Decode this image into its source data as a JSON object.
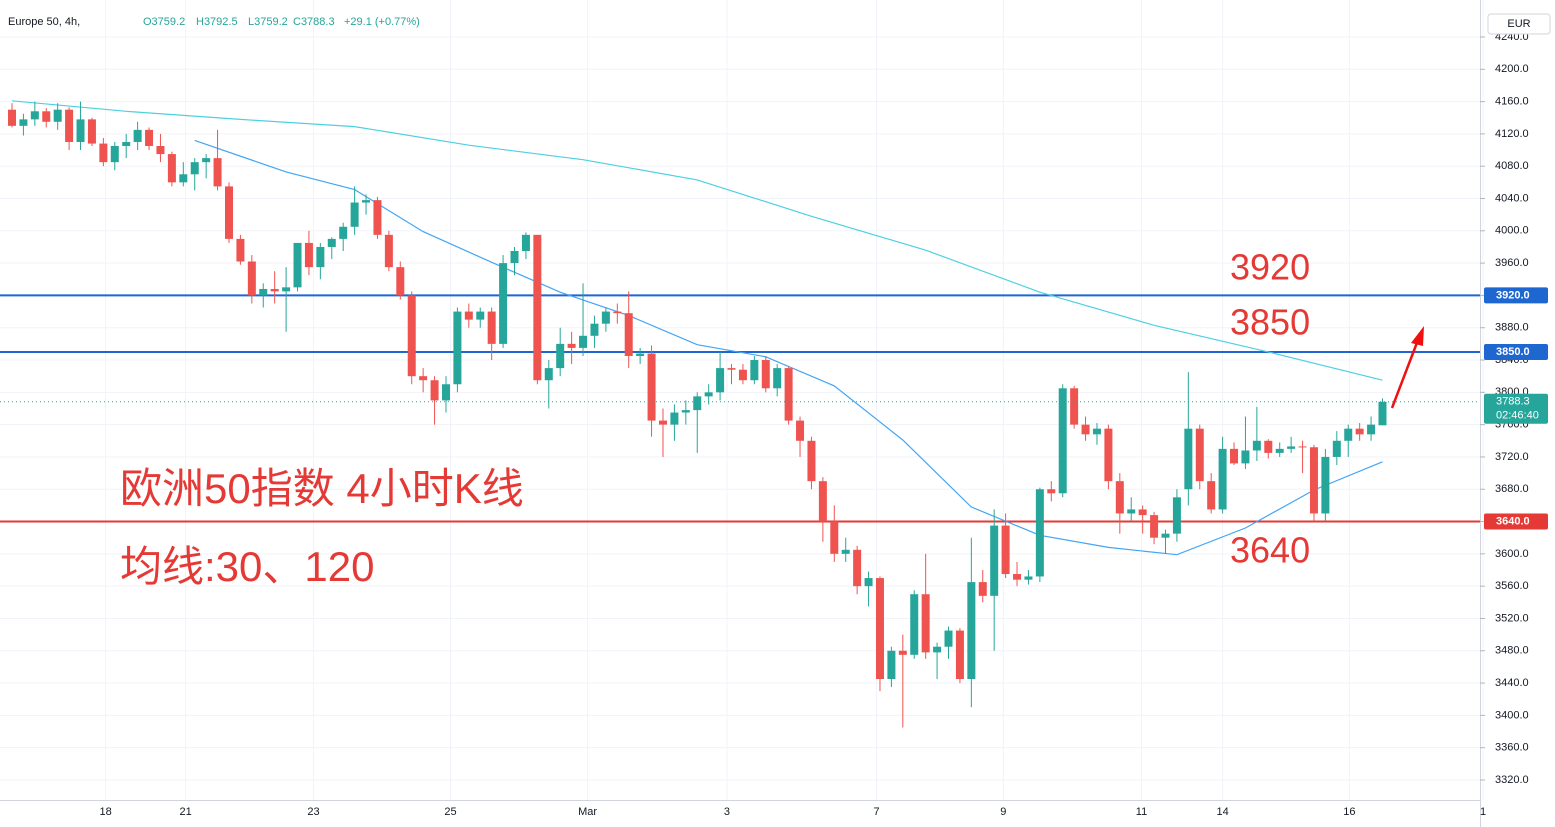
{
  "chart_data": {
    "type": "candlestick",
    "header": {
      "symbol": "Europe 50, 4h,",
      "o": "O3759.2",
      "h": "H3792.5",
      "l": "L3759.2",
      "c": "C3788.3",
      "change": "+29.1 (+0.77%)"
    },
    "currency": "EUR",
    "up_color": "#26a69a",
    "down_color": "#ef5350",
    "xlim": [
      -1.05,
      128.8
    ],
    "xticks": [
      {
        "value": 8.2,
        "label": "18"
      },
      {
        "value": 15.2,
        "label": "21"
      },
      {
        "value": 26.4,
        "label": "23"
      },
      {
        "value": 38.4,
        "label": "25"
      },
      {
        "value": 50.4,
        "label": "Mar"
      },
      {
        "value": 62.6,
        "label": "3"
      },
      {
        "value": 75.7,
        "label": "7"
      },
      {
        "value": 86.8,
        "label": "9"
      },
      {
        "value": 98.9,
        "label": "11"
      },
      {
        "value": 106,
        "label": "14"
      },
      {
        "value": 117.1,
        "label": "16"
      },
      {
        "value": 128.8,
        "label": "1"
      }
    ],
    "ylim": [
      3295.2,
      4285.8
    ],
    "yticks": [
      {
        "value": 3320,
        "label": "3320.0"
      },
      {
        "value": 3360,
        "label": "3360.0"
      },
      {
        "value": 3400,
        "label": "3400.0"
      },
      {
        "value": 3440,
        "label": "3440.0"
      },
      {
        "value": 3480,
        "label": "3480.0"
      },
      {
        "value": 3520,
        "label": "3520.0"
      },
      {
        "value": 3560,
        "label": "3560.0"
      },
      {
        "value": 3600,
        "label": "3600.0"
      },
      {
        "value": 3640,
        "label": "3640.0"
      },
      {
        "value": 3680,
        "label": "3680.0"
      },
      {
        "value": 3720,
        "label": "3720.0"
      },
      {
        "value": 3760,
        "label": "3760.0"
      },
      {
        "value": 3800,
        "label": "3800.0"
      },
      {
        "value": 3840,
        "label": "3840.0"
      },
      {
        "value": 3880,
        "label": "3880.0"
      },
      {
        "value": 3920,
        "label": "3920.0"
      },
      {
        "value": 3960,
        "label": "3960.0"
      },
      {
        "value": 4000,
        "label": "4000.0"
      },
      {
        "value": 4040,
        "label": "4040.0"
      },
      {
        "value": 4080,
        "label": "4080.0"
      },
      {
        "value": 4120,
        "label": "4120.0"
      },
      {
        "value": 4160,
        "label": "4160.0"
      },
      {
        "value": 4200,
        "label": "4200.0"
      },
      {
        "value": 4240,
        "label": "4240.0"
      }
    ],
    "grid": true,
    "ohlc": [
      [
        4150,
        4158,
        4128,
        4130
      ],
      [
        4130,
        4145,
        4118,
        4138
      ],
      [
        4138,
        4160,
        4130,
        4148
      ],
      [
        4148,
        4152,
        4128,
        4135
      ],
      [
        4135,
        4158,
        4125,
        4150
      ],
      [
        4150,
        4153,
        4100,
        4110
      ],
      [
        4110,
        4160,
        4100,
        4138
      ],
      [
        4138,
        4140,
        4105,
        4108
      ],
      [
        4108,
        4115,
        4080,
        4085
      ],
      [
        4085,
        4110,
        4075,
        4105
      ],
      [
        4105,
        4120,
        4090,
        4110
      ],
      [
        4110,
        4135,
        4100,
        4125
      ],
      [
        4125,
        4128,
        4100,
        4105
      ],
      [
        4105,
        4120,
        4085,
        4095
      ],
      [
        4095,
        4098,
        4055,
        4060
      ],
      [
        4060,
        4085,
        4055,
        4070
      ],
      [
        4070,
        4090,
        4050,
        4085
      ],
      [
        4085,
        4095,
        4065,
        4090
      ],
      [
        4090,
        4125,
        4050,
        4055
      ],
      [
        4055,
        4060,
        3985,
        3990
      ],
      [
        3990,
        3995,
        3958,
        3962
      ],
      [
        3962,
        3970,
        3910,
        3920
      ],
      [
        3920,
        3935,
        3905,
        3928
      ],
      [
        3928,
        3950,
        3910,
        3925
      ],
      [
        3925,
        3955,
        3875,
        3930
      ],
      [
        3930,
        3985,
        3925,
        3985
      ],
      [
        3985,
        4000,
        3945,
        3955
      ],
      [
        3955,
        3985,
        3940,
        3980
      ],
      [
        3980,
        3992,
        3965,
        3990
      ],
      [
        3990,
        4010,
        3975,
        4005
      ],
      [
        4005,
        4055,
        3995,
        4035
      ],
      [
        4035,
        4045,
        4020,
        4038
      ],
      [
        4038,
        4042,
        3990,
        3995
      ],
      [
        3995,
        4000,
        3950,
        3955
      ],
      [
        3955,
        3962,
        3915,
        3920
      ],
      [
        3920,
        3925,
        3810,
        3820
      ],
      [
        3820,
        3830,
        3800,
        3815
      ],
      [
        3815,
        3820,
        3760,
        3790
      ],
      [
        3790,
        3820,
        3775,
        3810
      ],
      [
        3810,
        3905,
        3800,
        3900
      ],
      [
        3900,
        3910,
        3880,
        3890
      ],
      [
        3890,
        3905,
        3880,
        3900
      ],
      [
        3900,
        3905,
        3840,
        3860
      ],
      [
        3860,
        3970,
        3855,
        3960
      ],
      [
        3960,
        3980,
        3945,
        3975
      ],
      [
        3975,
        3998,
        3965,
        3995
      ],
      [
        3995,
        3995,
        3810,
        3815
      ],
      [
        3815,
        3840,
        3780,
        3830
      ],
      [
        3830,
        3880,
        3820,
        3860
      ],
      [
        3860,
        3875,
        3835,
        3855
      ],
      [
        3855,
        3935,
        3845,
        3870
      ],
      [
        3870,
        3895,
        3855,
        3885
      ],
      [
        3885,
        3905,
        3875,
        3900
      ],
      [
        3900,
        3910,
        3885,
        3898
      ],
      [
        3898,
        3925,
        3830,
        3845
      ],
      [
        3845,
        3855,
        3835,
        3848
      ],
      [
        3848,
        3858,
        3745,
        3765
      ],
      [
        3765,
        3780,
        3720,
        3760
      ],
      [
        3760,
        3785,
        3740,
        3775
      ],
      [
        3775,
        3790,
        3760,
        3778
      ],
      [
        3778,
        3800,
        3725,
        3795
      ],
      [
        3795,
        3810,
        3785,
        3800
      ],
      [
        3800,
        3850,
        3790,
        3830
      ],
      [
        3830,
        3835,
        3810,
        3828
      ],
      [
        3828,
        3835,
        3810,
        3815
      ],
      [
        3815,
        3845,
        3810,
        3840
      ],
      [
        3840,
        3845,
        3800,
        3805
      ],
      [
        3805,
        3835,
        3795,
        3830
      ],
      [
        3830,
        3832,
        3760,
        3765
      ],
      [
        3765,
        3770,
        3720,
        3740
      ],
      [
        3740,
        3745,
        3680,
        3690
      ],
      [
        3690,
        3695,
        3615,
        3640
      ],
      [
        3640,
        3660,
        3590,
        3600
      ],
      [
        3600,
        3620,
        3590,
        3605
      ],
      [
        3605,
        3610,
        3550,
        3560
      ],
      [
        3560,
        3578,
        3535,
        3570
      ],
      [
        3570,
        3572,
        3430,
        3445
      ],
      [
        3445,
        3485,
        3435,
        3480
      ],
      [
        3480,
        3500,
        3385,
        3475
      ],
      [
        3475,
        3555,
        3470,
        3550
      ],
      [
        3550,
        3600,
        3470,
        3478
      ],
      [
        3478,
        3490,
        3445,
        3485
      ],
      [
        3485,
        3510,
        3470,
        3505
      ],
      [
        3505,
        3508,
        3440,
        3445
      ],
      [
        3445,
        3620,
        3410,
        3565
      ],
      [
        3565,
        3580,
        3540,
        3548
      ],
      [
        3548,
        3655,
        3480,
        3635
      ],
      [
        3635,
        3650,
        3570,
        3575
      ],
      [
        3575,
        3590,
        3560,
        3568
      ],
      [
        3568,
        3580,
        3562,
        3572
      ],
      [
        3572,
        3682,
        3565,
        3680
      ],
      [
        3680,
        3690,
        3665,
        3675
      ],
      [
        3675,
        3810,
        3670,
        3805
      ],
      [
        3805,
        3808,
        3755,
        3760
      ],
      [
        3760,
        3770,
        3740,
        3748
      ],
      [
        3748,
        3762,
        3735,
        3755
      ],
      [
        3755,
        3760,
        3680,
        3690
      ],
      [
        3690,
        3700,
        3625,
        3650
      ],
      [
        3650,
        3670,
        3640,
        3655
      ],
      [
        3655,
        3660,
        3625,
        3648
      ],
      [
        3648,
        3652,
        3612,
        3620
      ],
      [
        3620,
        3630,
        3600,
        3625
      ],
      [
        3625,
        3680,
        3615,
        3670
      ],
      [
        3680,
        3825,
        3660,
        3755
      ],
      [
        3755,
        3760,
        3680,
        3690
      ],
      [
        3690,
        3700,
        3650,
        3655
      ],
      [
        3655,
        3745,
        3650,
        3730
      ],
      [
        3730,
        3738,
        3710,
        3712
      ],
      [
        3712,
        3770,
        3705,
        3728
      ],
      [
        3728,
        3782,
        3715,
        3740
      ],
      [
        3740,
        3742,
        3718,
        3725
      ],
      [
        3725,
        3738,
        3720,
        3730
      ],
      [
        3730,
        3745,
        3725,
        3733
      ],
      [
        3733,
        3740,
        3700,
        3732
      ],
      [
        3732,
        3735,
        3640,
        3650
      ],
      [
        3650,
        3730,
        3640,
        3720
      ],
      [
        3720,
        3752,
        3710,
        3740
      ],
      [
        3740,
        3760,
        3720,
        3755
      ],
      [
        3755,
        3762,
        3740,
        3748
      ],
      [
        3748,
        3770,
        3740,
        3760
      ],
      [
        3759.2,
        3792.5,
        3759.2,
        3788.3
      ]
    ],
    "lines": [
      {
        "color": "#4dd0e1",
        "x": [
          0,
          10,
          20,
          30,
          40,
          50,
          60,
          70,
          80,
          90,
          100,
          110,
          120
        ],
        "values": [
          4161,
          4148,
          4138,
          4129,
          4106,
          4088,
          4063,
          4018,
          3976,
          3924,
          3883,
          3850,
          3815
        ]
      },
      {
        "color": "#42a5f5",
        "x": [
          16,
          24,
          30,
          36,
          42,
          48,
          54,
          60,
          66,
          72,
          78,
          84,
          90,
          96,
          102,
          108,
          114,
          120
        ],
        "values": [
          4112,
          4073,
          4051,
          3999,
          3961,
          3924,
          3895,
          3859,
          3844,
          3808,
          3741,
          3658,
          3623,
          3608,
          3599,
          3632,
          3679,
          3714
        ]
      }
    ],
    "levels": [
      {
        "value": 3920,
        "label": "3920.0",
        "color": "#1e66d0"
      },
      {
        "value": 3850,
        "label": "3850.0",
        "color": "#1e66d0"
      },
      {
        "value": 3640,
        "label": "3640.0",
        "color": "#e53935"
      }
    ],
    "last_price": {
      "value": 3788.3,
      "countdown": "02:46:40"
    },
    "annotations": [
      "3920",
      "3850",
      "3640",
      "欧洲50指数 4小时K线",
      "均线:30、120"
    ]
  }
}
